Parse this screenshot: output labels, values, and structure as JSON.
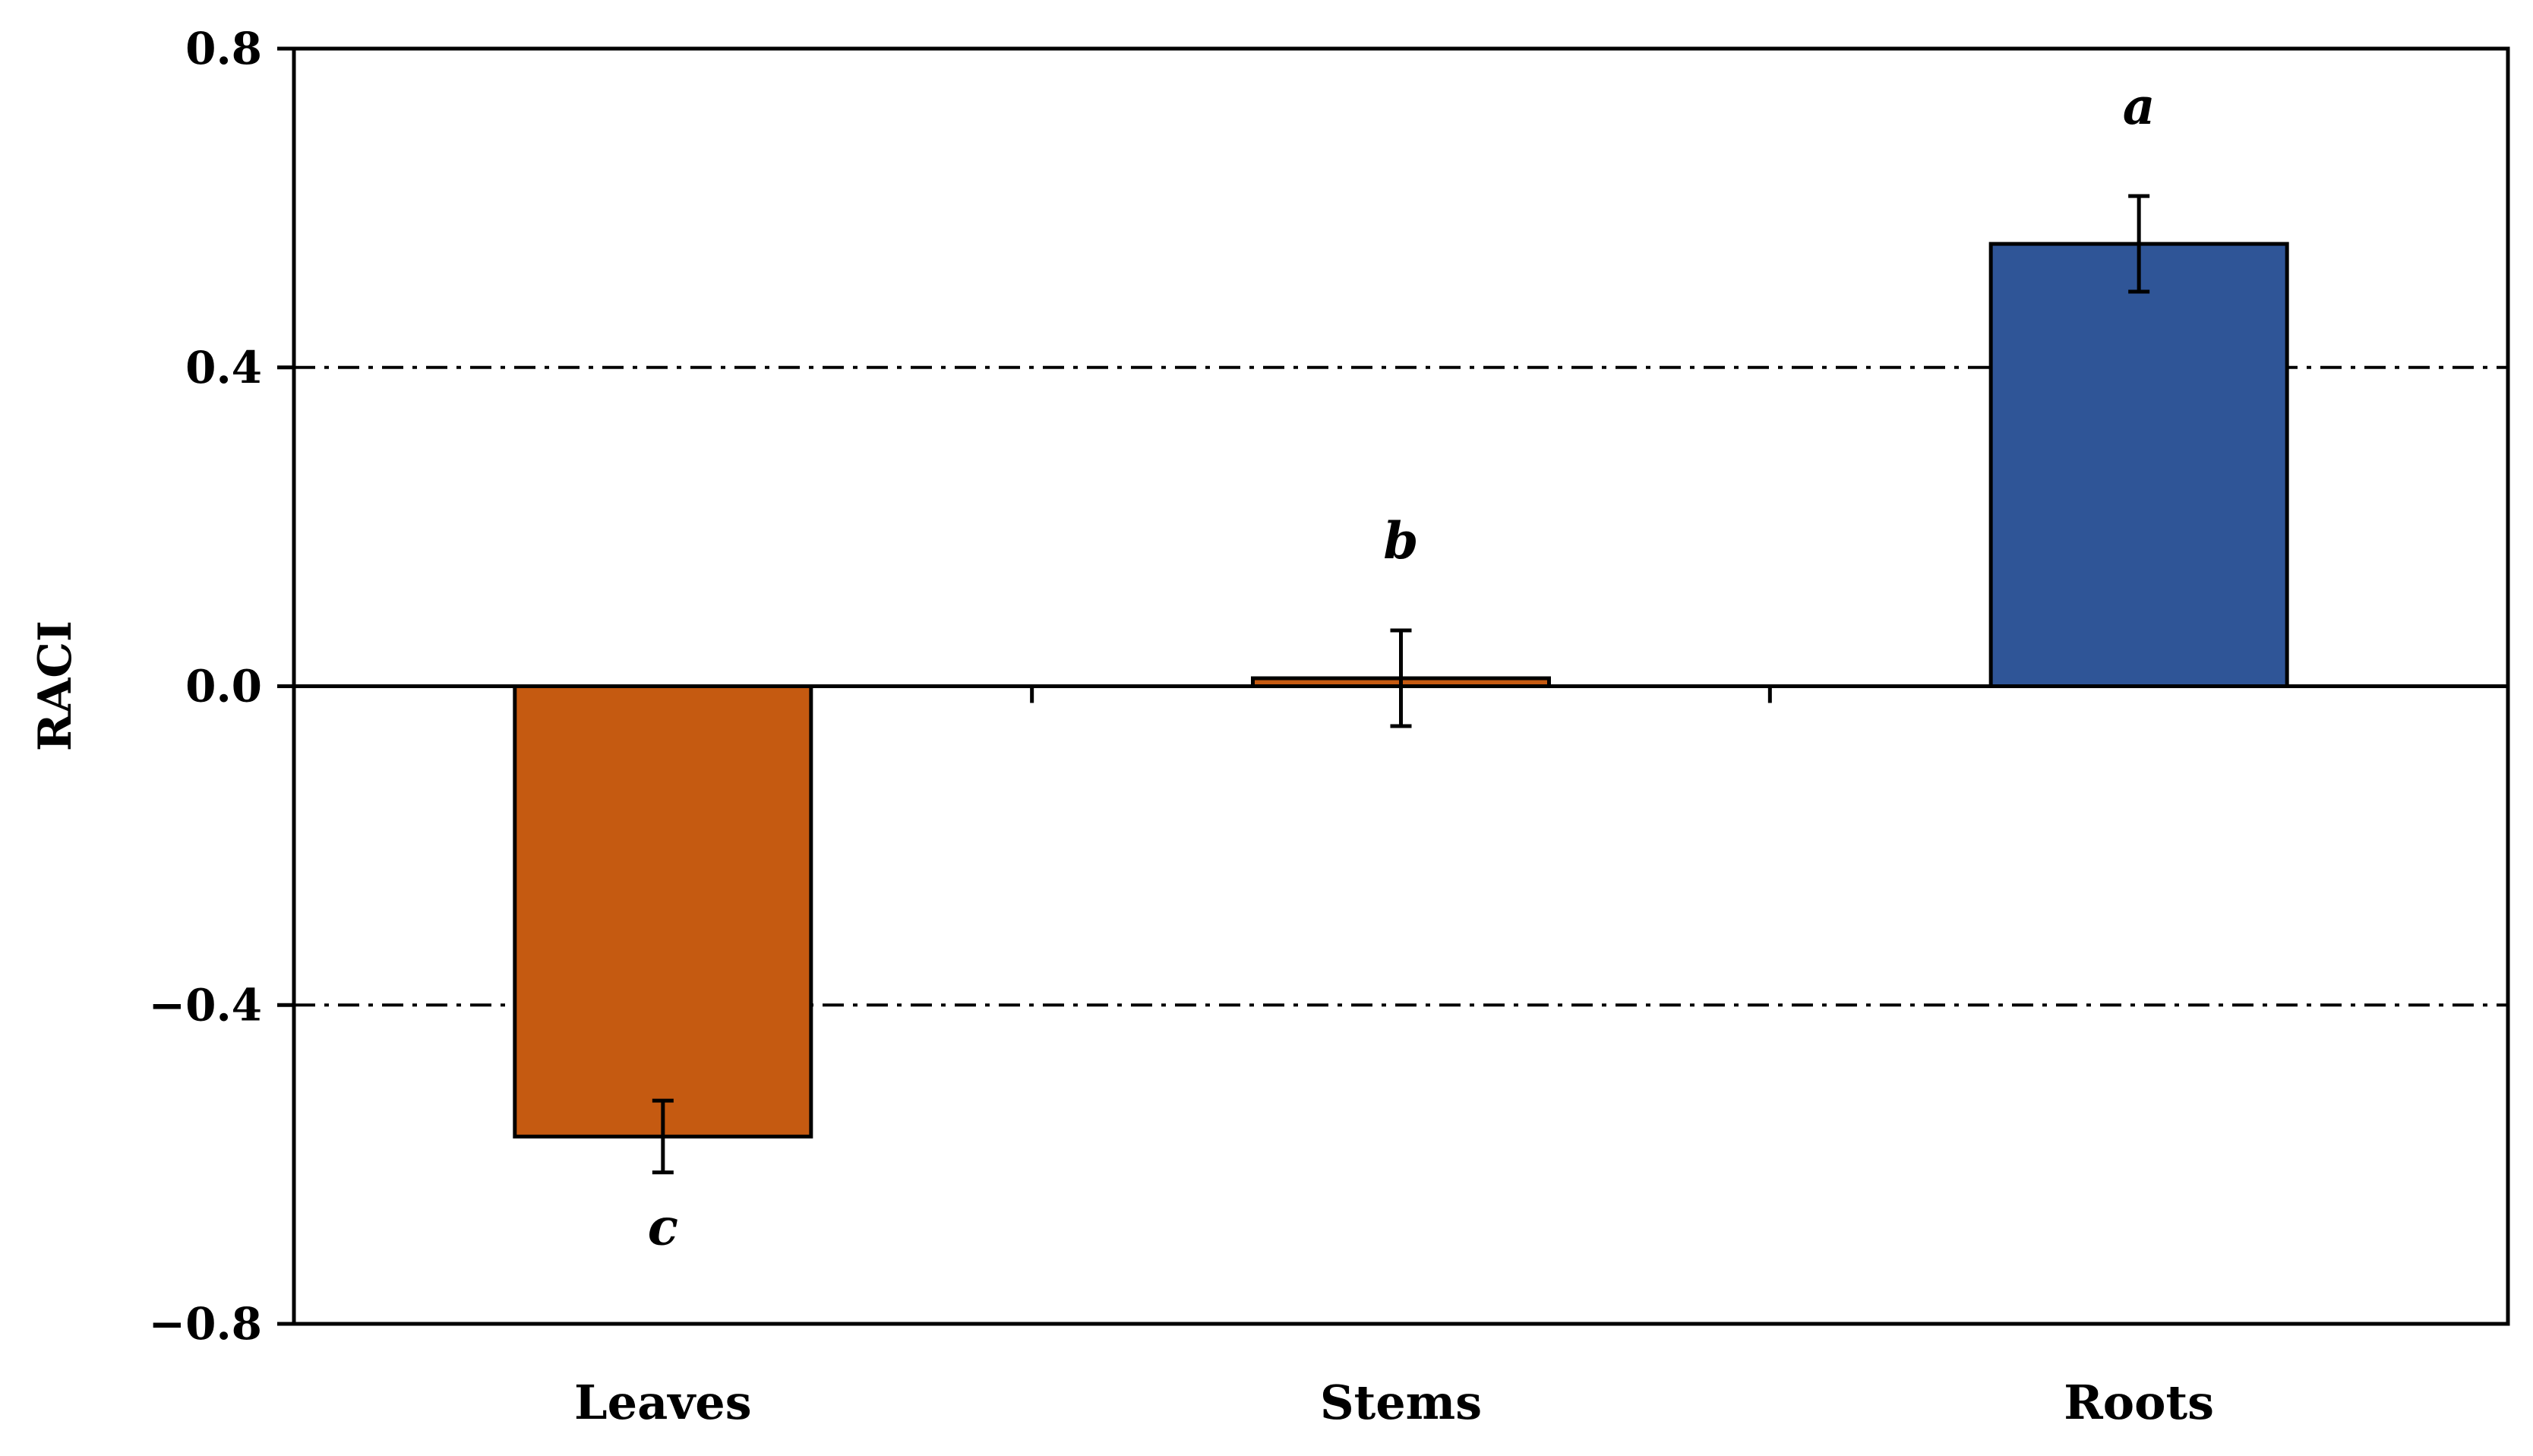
{
  "chart_data": {
    "type": "bar",
    "categories": [
      "Leaves",
      "Stems",
      "Roots"
    ],
    "values": [
      -0.565,
      0.01,
      0.555
    ],
    "errors": [
      0.045,
      0.06,
      0.06
    ],
    "significance": [
      "c",
      "b",
      "a"
    ],
    "colors": [
      "#C55A11",
      "#C55A11",
      "#2F5597"
    ],
    "xlabel": "",
    "ylabel": "RACI",
    "ylim": [
      -0.8,
      0.8
    ],
    "yticks": [
      0.8,
      0.4,
      0.0,
      -0.4,
      -0.8
    ],
    "ytick_labels": [
      "0.8",
      "0.4",
      "0.0",
      "−0.4",
      "−0.8"
    ],
    "reference_lines": [
      0.4,
      -0.4
    ],
    "grid": false,
    "legend": "none"
  }
}
